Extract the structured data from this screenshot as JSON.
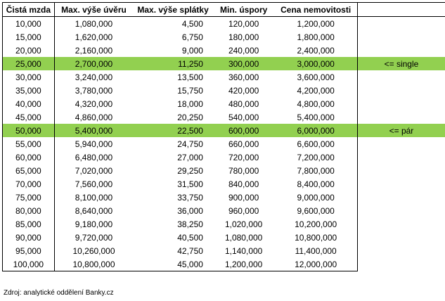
{
  "headers": [
    "Čistá mzda",
    "Max. výše úvěru",
    "Max. výše splátky",
    "Min. úspory",
    "Cena nemovitosti"
  ],
  "rows": [
    {
      "mzda": "10,000",
      "uver": "1,080,000",
      "splatka": "4,500",
      "uspory": "120,000",
      "cena": "1,200,000",
      "note": "",
      "highlight": false
    },
    {
      "mzda": "15,000",
      "uver": "1,620,000",
      "splatka": "6,750",
      "uspory": "180,000",
      "cena": "1,800,000",
      "note": "",
      "highlight": false
    },
    {
      "mzda": "20,000",
      "uver": "2,160,000",
      "splatka": "9,000",
      "uspory": "240,000",
      "cena": "2,400,000",
      "note": "",
      "highlight": false
    },
    {
      "mzda": "25,000",
      "uver": "2,700,000",
      "splatka": "11,250",
      "uspory": "300,000",
      "cena": "3,000,000",
      "note": "<= single",
      "highlight": true
    },
    {
      "mzda": "30,000",
      "uver": "3,240,000",
      "splatka": "13,500",
      "uspory": "360,000",
      "cena": "3,600,000",
      "note": "",
      "highlight": false
    },
    {
      "mzda": "35,000",
      "uver": "3,780,000",
      "splatka": "15,750",
      "uspory": "420,000",
      "cena": "4,200,000",
      "note": "",
      "highlight": false
    },
    {
      "mzda": "40,000",
      "uver": "4,320,000",
      "splatka": "18,000",
      "uspory": "480,000",
      "cena": "4,800,000",
      "note": "",
      "highlight": false
    },
    {
      "mzda": "45,000",
      "uver": "4,860,000",
      "splatka": "20,250",
      "uspory": "540,000",
      "cena": "5,400,000",
      "note": "",
      "highlight": false
    },
    {
      "mzda": "50,000",
      "uver": "5,400,000",
      "splatka": "22,500",
      "uspory": "600,000",
      "cena": "6,000,000",
      "note": "<= pár",
      "highlight": true
    },
    {
      "mzda": "55,000",
      "uver": "5,940,000",
      "splatka": "24,750",
      "uspory": "660,000",
      "cena": "6,600,000",
      "note": "",
      "highlight": false
    },
    {
      "mzda": "60,000",
      "uver": "6,480,000",
      "splatka": "27,000",
      "uspory": "720,000",
      "cena": "7,200,000",
      "note": "",
      "highlight": false
    },
    {
      "mzda": "65,000",
      "uver": "7,020,000",
      "splatka": "29,250",
      "uspory": "780,000",
      "cena": "7,800,000",
      "note": "",
      "highlight": false
    },
    {
      "mzda": "70,000",
      "uver": "7,560,000",
      "splatka": "31,500",
      "uspory": "840,000",
      "cena": "8,400,000",
      "note": "",
      "highlight": false
    },
    {
      "mzda": "75,000",
      "uver": "8,100,000",
      "splatka": "33,750",
      "uspory": "900,000",
      "cena": "9,000,000",
      "note": "",
      "highlight": false
    },
    {
      "mzda": "80,000",
      "uver": "8,640,000",
      "splatka": "36,000",
      "uspory": "960,000",
      "cena": "9,600,000",
      "note": "",
      "highlight": false
    },
    {
      "mzda": "85,000",
      "uver": "9,180,000",
      "splatka": "38,250",
      "uspory": "1,020,000",
      "cena": "10,200,000",
      "note": "",
      "highlight": false
    },
    {
      "mzda": "90,000",
      "uver": "9,720,000",
      "splatka": "40,500",
      "uspory": "1,080,000",
      "cena": "10,800,000",
      "note": "",
      "highlight": false
    },
    {
      "mzda": "95,000",
      "uver": "10,260,000",
      "splatka": "42,750",
      "uspory": "1,140,000",
      "cena": "11,400,000",
      "note": "",
      "highlight": false
    },
    {
      "mzda": "100,000",
      "uver": "10,800,000",
      "splatka": "45,000",
      "uspory": "1,200,000",
      "cena": "12,000,000",
      "note": "",
      "highlight": false
    }
  ],
  "source": "Zdroj: analytické oddělení Banky.cz",
  "colors": {
    "highlight": "#92d050"
  }
}
